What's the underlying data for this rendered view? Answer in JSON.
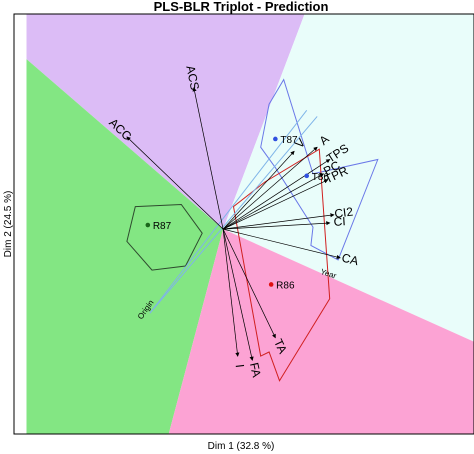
{
  "chart_data": {
    "type": "scatter",
    "title": "PLS-BLR Triplot - Prediction",
    "xlabel": "Dim 1 (32.8 %)",
    "ylabel": "Dim 2 (24.5 %)",
    "xlim": [
      -1.0,
      1.2
    ],
    "ylim": [
      -1.0,
      1.05
    ],
    "grid": false,
    "origin": [
      0,
      0
    ],
    "regions": [
      {
        "class": "ACS-class",
        "color": "#dcbcf6",
        "polygon": [
          [
            -0.94,
            1.05
          ],
          [
            0.39,
            1.05
          ],
          [
            0.0,
            0.0
          ],
          [
            -0.94,
            0.83
          ]
        ]
      },
      {
        "class": "T-class",
        "color": "#e9fdfa",
        "polygon": [
          [
            0.39,
            1.05
          ],
          [
            1.2,
            1.05
          ],
          [
            1.2,
            -0.55
          ],
          [
            0.0,
            0.0
          ]
        ]
      },
      {
        "class": "R87-class",
        "color": "#83e683",
        "polygon": [
          [
            -0.94,
            0.83
          ],
          [
            0.0,
            0.0
          ],
          [
            -0.26,
            -1.0
          ],
          [
            -0.94,
            -1.0
          ]
        ]
      },
      {
        "class": "R86-class",
        "color": "#fca3d4",
        "polygon": [
          [
            0.0,
            0.0
          ],
          [
            1.2,
            -0.55
          ],
          [
            1.2,
            -1.0
          ],
          [
            -0.26,
            -1.0
          ]
        ]
      }
    ],
    "variables": [
      {
        "label": "ACS",
        "x": -0.14,
        "y": 0.69
      },
      {
        "label": "ACC",
        "x": -0.46,
        "y": 0.45
      },
      {
        "label": "V",
        "x": 0.34,
        "y": 0.38
      },
      {
        "label": "A",
        "x": 0.45,
        "y": 0.4
      },
      {
        "label": "TPS",
        "x": 0.51,
        "y": 0.34
      },
      {
        "label": "PC",
        "x": 0.48,
        "y": 0.27
      },
      {
        "label": "TPR",
        "x": 0.5,
        "y": 0.24
      },
      {
        "label": "CI2",
        "x": 0.53,
        "y": 0.07
      },
      {
        "label": "CI",
        "x": 0.51,
        "y": 0.03
      },
      {
        "label": "CA",
        "x": 0.56,
        "y": -0.14
      },
      {
        "label": "TA",
        "x": 0.25,
        "y": -0.53
      },
      {
        "label": "FA",
        "x": 0.14,
        "y": -0.64
      },
      {
        "label": "I",
        "x": 0.07,
        "y": -0.62
      }
    ],
    "samples": [
      {
        "label": "T87",
        "x": 0.25,
        "y": 0.44,
        "color": "#3050e0"
      },
      {
        "label": "T86",
        "x": 0.4,
        "y": 0.26,
        "color": "#3050e0"
      },
      {
        "label": "R87",
        "x": -0.36,
        "y": 0.02,
        "color": "#1a661a"
      },
      {
        "label": "R86",
        "x": 0.23,
        "y": -0.27,
        "color": "#e01010"
      }
    ],
    "hulls": [
      {
        "class": "R87",
        "color": "#2e4a2e",
        "points": [
          [
            -0.42,
            0.11
          ],
          [
            -0.2,
            0.12
          ],
          [
            -0.1,
            -0.02
          ],
          [
            -0.18,
            -0.18
          ],
          [
            -0.34,
            -0.2
          ],
          [
            -0.46,
            -0.06
          ]
        ]
      },
      {
        "class": "T",
        "color": "#6a78e8",
        "points": [
          [
            0.22,
            0.61
          ],
          [
            0.29,
            0.73
          ],
          [
            0.43,
            0.27
          ],
          [
            0.74,
            0.34
          ],
          [
            0.55,
            -0.15
          ],
          [
            0.42,
            -0.08
          ],
          [
            0.43,
            0.01
          ],
          [
            0.25,
            0.3
          ],
          [
            0.18,
            0.4
          ]
        ]
      },
      {
        "class": "R86",
        "color": "#d02020",
        "points": [
          [
            0.18,
            -0.62
          ],
          [
            0.22,
            -0.6
          ],
          [
            0.27,
            -0.74
          ],
          [
            0.51,
            -0.34
          ],
          [
            0.47,
            0.24
          ],
          [
            0.46,
            0.39
          ],
          [
            0.2,
            0.23
          ],
          [
            0.05,
            0.11
          ]
        ]
      }
    ],
    "axes": [
      {
        "label": "Year",
        "color": "#7fb4e8",
        "from": [
          -0.35,
          -0.41
        ],
        "to": [
          0.45,
          0.55
        ],
        "label_at": [
          0.5,
          -0.23
        ],
        "label_angle": 18
      },
      {
        "label": "Origin",
        "color": "#7fb4e8",
        "from": [
          -0.35,
          -0.41
        ],
        "to": [
          0.4,
          0.58
        ],
        "label_at": [
          -0.36,
          -0.4
        ],
        "label_angle": -55
      }
    ]
  }
}
